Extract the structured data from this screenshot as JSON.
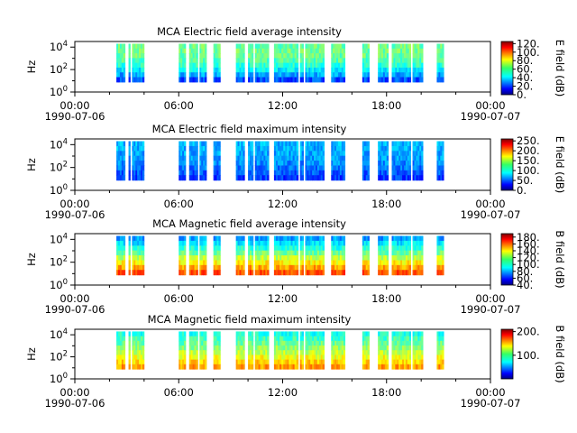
{
  "chart_data": [
    {
      "type": "heatmap",
      "title": "MCA  Electric field average intensity",
      "ylabel": "Hz",
      "y_ticks": [
        "10^0",
        "10^2",
        "10^4"
      ],
      "x_ticks": [
        "00:00",
        "06:00",
        "12:00",
        "18:00",
        "00:00"
      ],
      "x_dates": [
        "1990-07-06",
        "1990-07-07"
      ],
      "colorbar": {
        "label": "E field (dB)",
        "ticks": [
          "120.",
          "100.",
          "80.",
          "60.",
          "40.",
          "20.",
          "0."
        ],
        "range": [
          0,
          125
        ]
      },
      "palette": "jet",
      "levels": [
        0.48,
        0.3,
        0.58,
        0.2
      ]
    },
    {
      "type": "heatmap",
      "title": "MCA  Electric field maximum intensity",
      "ylabel": "Hz",
      "y_ticks": [
        "10^0",
        "10^2",
        "10^4"
      ],
      "x_ticks": [
        "00:00",
        "06:00",
        "12:00",
        "18:00",
        "00:00"
      ],
      "x_dates": [
        "1990-07-06",
        "1990-07-07"
      ],
      "colorbar": {
        "label": "E field (dB)",
        "ticks": [
          "250.",
          "200.",
          "150.",
          "100.",
          "50.",
          "0."
        ],
        "range": [
          0,
          260
        ]
      },
      "palette": "jet",
      "levels": [
        0.3,
        0.22,
        0.32,
        0.18
      ]
    },
    {
      "type": "heatmap",
      "title": "MCA  Magnetic field average intensity",
      "ylabel": "Hz",
      "y_ticks": [
        "10^0",
        "10^2",
        "10^4"
      ],
      "x_ticks": [
        "00:00",
        "06:00",
        "12:00",
        "18:00",
        "00:00"
      ],
      "x_dates": [
        "1990-07-06",
        "1990-07-07"
      ],
      "colorbar": {
        "label": "B field (dB)",
        "ticks": [
          "180.",
          "160.",
          "140.",
          "120.",
          "100.",
          "80.",
          "60.",
          "40."
        ],
        "range": [
          40,
          190
        ]
      },
      "palette": "jet",
      "levels": [
        0.28,
        0.42,
        0.62,
        0.8
      ]
    },
    {
      "type": "heatmap",
      "title": "MCA  Magnetic field maximum intensity",
      "ylabel": "Hz",
      "y_ticks": [
        "10^0",
        "10^2",
        "10^4"
      ],
      "x_ticks": [
        "00:00",
        "06:00",
        "12:00",
        "18:00",
        "00:00"
      ],
      "x_dates": [
        "1990-07-06",
        "1990-07-07"
      ],
      "colorbar": {
        "label": "B field (dB)",
        "ticks": [
          "200.",
          "100."
        ],
        "range": [
          0,
          210
        ]
      },
      "palette": "jet",
      "levels": [
        0.4,
        0.48,
        0.6,
        0.72
      ]
    }
  ],
  "data_coverage_hours": [
    [
      2.4,
      2.9
    ],
    [
      3.1,
      3.2
    ],
    [
      3.3,
      4.0
    ],
    [
      6.0,
      6.4
    ],
    [
      6.6,
      7.1
    ],
    [
      7.2,
      7.6
    ],
    [
      8.0,
      8.4
    ],
    [
      9.3,
      9.8
    ],
    [
      10.0,
      10.3
    ],
    [
      10.4,
      11.2
    ],
    [
      11.5,
      12.9
    ],
    [
      13.0,
      13.2
    ],
    [
      13.3,
      14.4
    ],
    [
      14.8,
      15.6
    ],
    [
      16.6,
      17.0
    ],
    [
      17.5,
      18.1
    ],
    [
      18.3,
      19.4
    ],
    [
      19.5,
      20.1
    ],
    [
      20.9,
      21.3
    ]
  ]
}
